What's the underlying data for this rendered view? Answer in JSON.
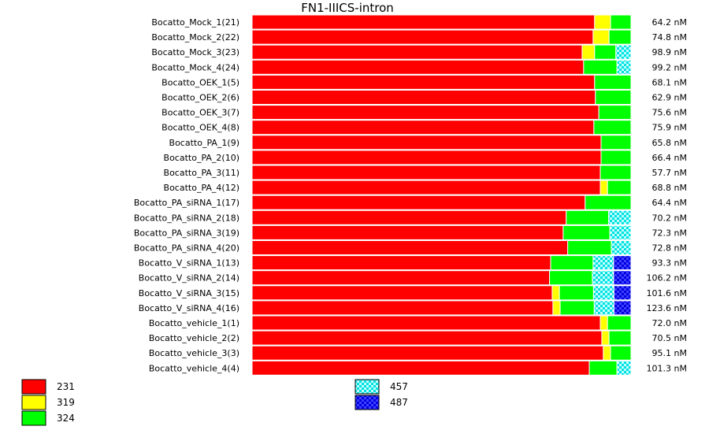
{
  "chart_data": {
    "type": "bar",
    "subtype": "stacked-horizontal-100-percent",
    "title": "FN1-IIICS-intron",
    "colors": {
      "231": "#ff0000",
      "319": "#ffff00",
      "324": "#00ff00",
      "457": "#00e0e0",
      "487": "#0000e0"
    },
    "legend": [
      {
        "name": "231",
        "pattern": "solid"
      },
      {
        "name": "319",
        "pattern": "solid"
      },
      {
        "name": "324",
        "pattern": "solid"
      },
      {
        "name": "457",
        "pattern": "checker"
      },
      {
        "name": "487",
        "pattern": "checker"
      }
    ],
    "series_order": [
      "231",
      "319",
      "324",
      "457",
      "487"
    ],
    "categories": [
      {
        "label": "Bocatto_Mock_1(21)",
        "conc": "64.2 nM",
        "shares": {
          "231": 90.4,
          "319": 4.2,
          "324": 5.4,
          "457": 0,
          "487": 0
        }
      },
      {
        "label": "Bocatto_Mock_2(22)",
        "conc": "74.8 nM",
        "shares": {
          "231": 90.0,
          "319": 4.2,
          "324": 5.8,
          "457": 0,
          "487": 0
        }
      },
      {
        "label": "Bocatto_Mock_3(23)",
        "conc": "98.9 nM",
        "shares": {
          "231": 87.1,
          "319": 3.3,
          "324": 5.6,
          "457": 4.0,
          "487": 0
        }
      },
      {
        "label": "Bocatto_Mock_4(24)",
        "conc": "99.2 nM",
        "shares": {
          "231": 87.5,
          "319": 0,
          "324": 8.8,
          "457": 3.7,
          "487": 0
        }
      },
      {
        "label": "Bocatto_OEK_1(5)",
        "conc": "68.1 nM",
        "shares": {
          "231": 90.4,
          "319": 0,
          "324": 9.6,
          "457": 0,
          "487": 0
        }
      },
      {
        "label": "Bocatto_OEK_2(6)",
        "conc": "62.9 nM",
        "shares": {
          "231": 90.6,
          "319": 0,
          "324": 9.4,
          "457": 0,
          "487": 0
        }
      },
      {
        "label": "Bocatto_OEK_3(7)",
        "conc": "75.6 nM",
        "shares": {
          "231": 91.5,
          "319": 0,
          "324": 8.5,
          "457": 0,
          "487": 0
        }
      },
      {
        "label": "Bocatto_OEK_4(8)",
        "conc": "75.9 nM",
        "shares": {
          "231": 90.2,
          "319": 0,
          "324": 9.8,
          "457": 0,
          "487": 0
        }
      },
      {
        "label": "Bocatto_PA_1(9)",
        "conc": "65.8 nM",
        "shares": {
          "231": 92.1,
          "319": 0,
          "324": 7.9,
          "457": 0,
          "487": 0
        }
      },
      {
        "label": "Bocatto_PA_2(10)",
        "conc": "66.4 nM",
        "shares": {
          "231": 92.1,
          "319": 0,
          "324": 7.9,
          "457": 0,
          "487": 0
        }
      },
      {
        "label": "Bocatto_PA_3(11)",
        "conc": "57.7 nM",
        "shares": {
          "231": 91.9,
          "319": 0,
          "324": 8.1,
          "457": 0,
          "487": 0
        }
      },
      {
        "label": "Bocatto_PA_4(12)",
        "conc": "68.8 nM",
        "shares": {
          "231": 91.9,
          "319": 1.9,
          "324": 6.2,
          "457": 0,
          "487": 0
        }
      },
      {
        "label": "Bocatto_PA_siRNA_1(17)",
        "conc": "64.4 nM",
        "shares": {
          "231": 87.9,
          "319": 0,
          "324": 12.1,
          "457": 0,
          "487": 0
        }
      },
      {
        "label": "Bocatto_PA_siRNA_2(18)",
        "conc": "70.2 nM",
        "shares": {
          "231": 82.9,
          "319": 0,
          "324": 11.2,
          "457": 5.9,
          "487": 0
        }
      },
      {
        "label": "Bocatto_PA_siRNA_3(19)",
        "conc": "72.3 nM",
        "shares": {
          "231": 82.1,
          "319": 0,
          "324": 12.3,
          "457": 5.6,
          "487": 0
        }
      },
      {
        "label": "Bocatto_PA_siRNA_4(20)",
        "conc": "72.8 nM",
        "shares": {
          "231": 83.3,
          "319": 0,
          "324": 11.5,
          "457": 5.2,
          "487": 0
        }
      },
      {
        "label": "Bocatto_V_siRNA_1(13)",
        "conc": "93.3 nM",
        "shares": {
          "231": 78.8,
          "319": 0,
          "324": 11.2,
          "457": 5.4,
          "487": 4.6
        }
      },
      {
        "label": "Bocatto_V_siRNA_2(14)",
        "conc": "106.2 nM",
        "shares": {
          "231": 78.5,
          "319": 0,
          "324": 11.3,
          "457": 5.6,
          "487": 4.6
        }
      },
      {
        "label": "Bocatto_V_siRNA_3(15)",
        "conc": "101.6 nM",
        "shares": {
          "231": 79.2,
          "319": 1.9,
          "324": 9.0,
          "457": 5.4,
          "487": 4.5
        }
      },
      {
        "label": "Bocatto_V_siRNA_4(16)",
        "conc": "123.6 nM",
        "shares": {
          "231": 79.4,
          "319": 1.9,
          "324": 9.0,
          "457": 5.2,
          "487": 4.5
        }
      },
      {
        "label": "Bocatto_vehicle_1(1)",
        "conc": "72.0 nM",
        "shares": {
          "231": 91.9,
          "319": 1.9,
          "324": 6.2,
          "457": 0,
          "487": 0
        }
      },
      {
        "label": "Bocatto_vehicle_2(2)",
        "conc": "70.5 nM",
        "shares": {
          "231": 92.3,
          "319": 1.9,
          "324": 5.8,
          "457": 0,
          "487": 0
        }
      },
      {
        "label": "Bocatto_vehicle_3(3)",
        "conc": "95.1 nM",
        "shares": {
          "231": 92.7,
          "319": 1.9,
          "324": 5.4,
          "457": 0,
          "487": 0
        }
      },
      {
        "label": "Bocatto_vehicle_4(4)",
        "conc": "101.3 nM",
        "shares": {
          "231": 89.0,
          "319": 0,
          "324": 7.3,
          "457": 3.7,
          "487": 0
        }
      }
    ]
  }
}
